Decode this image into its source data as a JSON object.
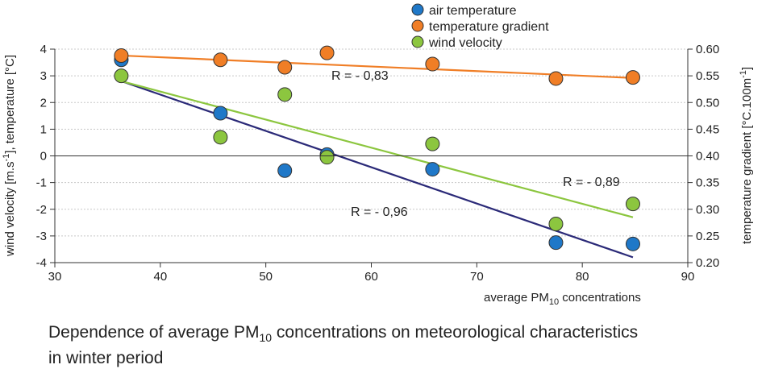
{
  "caption": {
    "line1_before_sub": "Dependence of average PM",
    "line1_sub": "10",
    "line1_after_sub": " concentrations on meteorological characteristics",
    "line2": "in winter period"
  },
  "chart_data": {
    "type": "scatter",
    "title": "",
    "x_axis": {
      "label_before_sub": "average PM",
      "label_sub": "10",
      "label_after_sub": " concentrations",
      "range": [
        30,
        90
      ],
      "ticks": [
        30,
        40,
        50,
        60,
        70,
        80,
        90
      ]
    },
    "y_axis_left": {
      "label_part1": "wind velocity [m.s",
      "label_sup": "-1",
      "label_part2": "], temperature [°C]",
      "range": [
        -4,
        4
      ],
      "ticks": [
        4,
        3,
        2,
        1,
        0,
        -1,
        -2,
        -3,
        -4
      ]
    },
    "y_axis_right": {
      "label_part1": "temperature gradient [°C.100m",
      "label_sup": "-1",
      "label_part2": "]",
      "range": [
        0.2,
        0.6
      ],
      "ticks": [
        "0.60",
        "0.55",
        "0.50",
        "0.45",
        "0.40",
        "0.35",
        "0.30",
        "0.25",
        "0.20"
      ]
    },
    "grid": "horizontal dotted",
    "legend_position": "top-center",
    "series": [
      {
        "name": "air temperature",
        "color": "#1f78c8",
        "axis": "left",
        "points": [
          [
            36.3,
            3.6
          ],
          [
            45.7,
            1.6
          ],
          [
            51.8,
            -0.55
          ],
          [
            55.8,
            0.05
          ],
          [
            65.8,
            -0.5
          ],
          [
            77.5,
            -3.25
          ],
          [
            84.8,
            -3.3
          ]
        ],
        "trend": [
          [
            36.3,
            2.8
          ],
          [
            84.8,
            -3.8
          ]
        ],
        "r_label": "R = - 0,96"
      },
      {
        "name": "temperature gradient",
        "color": "#f07e26",
        "axis": "right",
        "points": [
          [
            36.3,
            0.588
          ],
          [
            45.7,
            0.58
          ],
          [
            51.8,
            0.566
          ],
          [
            55.8,
            0.593
          ],
          [
            65.8,
            0.572
          ],
          [
            77.5,
            0.545
          ],
          [
            84.8,
            0.547
          ]
        ],
        "trend": [
          [
            36.3,
            0.588
          ],
          [
            84.8,
            0.546
          ]
        ],
        "r_label": "R = - 0,83"
      },
      {
        "name": "wind velocity",
        "color": "#8cc63f",
        "axis": "left",
        "points": [
          [
            36.3,
            3.0
          ],
          [
            45.7,
            0.7
          ],
          [
            51.8,
            2.3
          ],
          [
            55.8,
            -0.05
          ],
          [
            65.8,
            0.45
          ],
          [
            77.5,
            -2.55
          ],
          [
            84.8,
            -1.8
          ]
        ],
        "trend": [
          [
            36.3,
            2.8
          ],
          [
            84.8,
            -2.3
          ]
        ],
        "r_label": "R = - 0,89"
      }
    ],
    "trend_colors": {
      "air temperature": "#2b2a78",
      "temperature gradient": "#f07e26",
      "wind velocity": "#8cc63f"
    }
  }
}
